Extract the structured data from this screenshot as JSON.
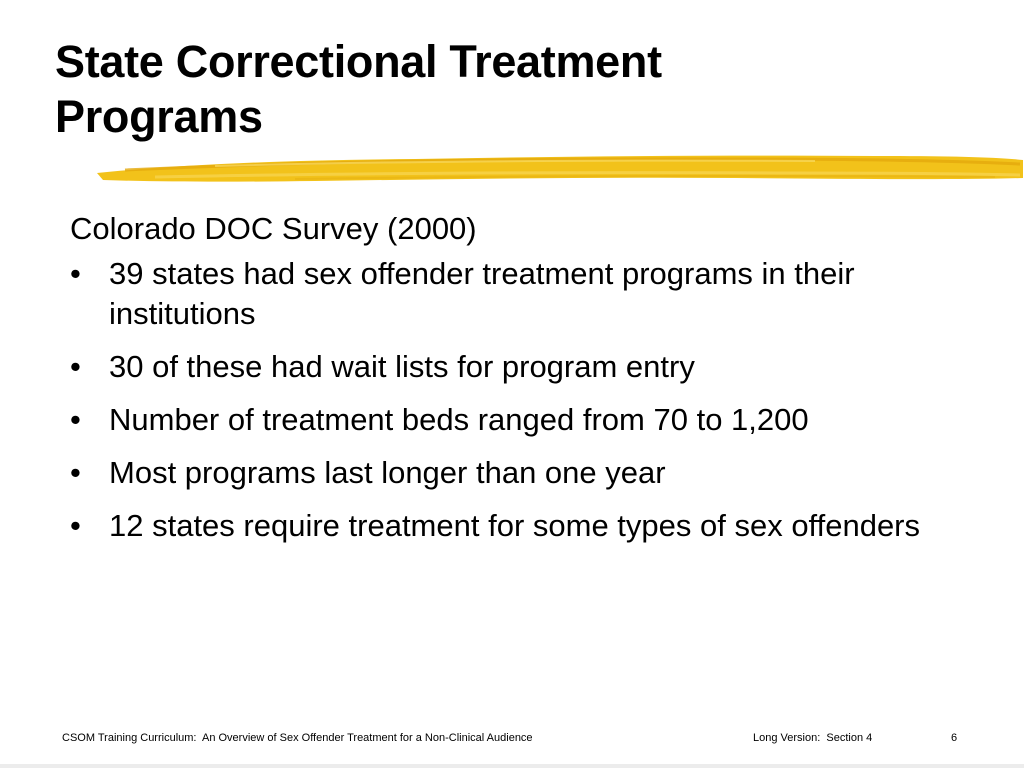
{
  "slide": {
    "title_lines": [
      "State Correctional Treatment",
      "Programs"
    ],
    "intro": "Colorado DOC Survey (2000)",
    "bullet_marker": "•",
    "bullets": [
      "39 states had sex offender treatment programs in their institutions",
      "30 of these had wait lists for program entry",
      "Number of treatment beds ranged from 70 to 1,200",
      "Most programs last longer than one year",
      "12 states require treatment for some types of sex offenders"
    ]
  },
  "footer": {
    "left": "CSOM Training Curriculum:  An Overview of Sex Offender Treatment for a Non-Clinical Audience",
    "middle": "Long Version:  Section 4",
    "page_number": "6"
  },
  "colors": {
    "highlight": "#f2c21a",
    "highlight_dark": "#e3a90c",
    "text": "#000000",
    "background": "#ffffff"
  }
}
